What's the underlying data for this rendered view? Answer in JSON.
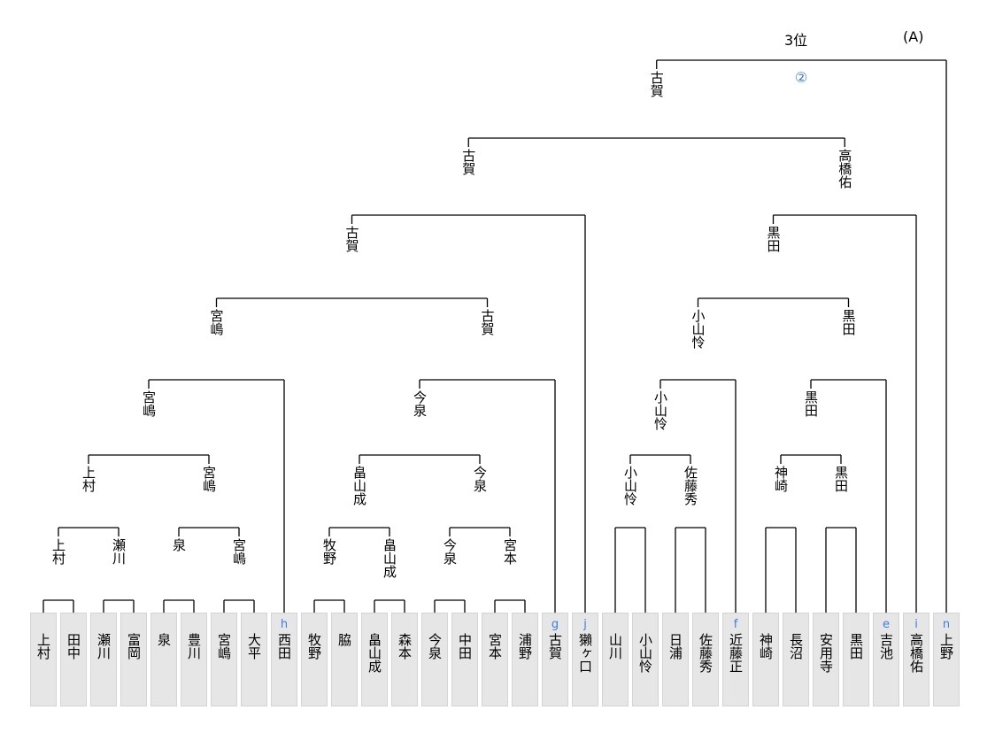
{
  "header": {
    "place": "3位",
    "group": "(A)"
  },
  "colors": {
    "line": "#000000",
    "code": "#3b7ddd",
    "box_bg": "#e6e6e6",
    "box_border": "#d4d4d4"
  },
  "players": [
    {
      "name": "上村",
      "code": ""
    },
    {
      "name": "田中",
      "code": ""
    },
    {
      "name": "瀬川",
      "code": ""
    },
    {
      "name": "富岡",
      "code": ""
    },
    {
      "name": "泉",
      "code": ""
    },
    {
      "name": "豊川",
      "code": ""
    },
    {
      "name": "宮嶋",
      "code": ""
    },
    {
      "name": "大平",
      "code": ""
    },
    {
      "name": "西田",
      "code": "h"
    },
    {
      "name": "牧野",
      "code": ""
    },
    {
      "name": "脇",
      "code": ""
    },
    {
      "name": "畠山成",
      "code": ""
    },
    {
      "name": "森本",
      "code": ""
    },
    {
      "name": "今泉",
      "code": ""
    },
    {
      "name": "中田",
      "code": ""
    },
    {
      "name": "宮本",
      "code": ""
    },
    {
      "name": "浦野",
      "code": ""
    },
    {
      "name": "古賀",
      "code": "g"
    },
    {
      "name": "獺ヶ口",
      "code": "j"
    },
    {
      "name": "山川",
      "code": ""
    },
    {
      "name": "小山怜",
      "code": ""
    },
    {
      "name": "日浦",
      "code": ""
    },
    {
      "name": "佐藤秀",
      "code": ""
    },
    {
      "name": "近藤正",
      "code": "f"
    },
    {
      "name": "神崎",
      "code": ""
    },
    {
      "name": "長沼",
      "code": ""
    },
    {
      "name": "安用寺",
      "code": ""
    },
    {
      "name": "黒田",
      "code": ""
    },
    {
      "name": "吉池",
      "code": "e"
    },
    {
      "name": "高橋佑",
      "code": "i"
    },
    {
      "name": "上野",
      "code": "n"
    }
  ],
  "bracket": {
    "badge": "②",
    "children": [
      {
        "winner": "古賀",
        "children": [
          {
            "winner": "古賀",
            "children": [
              {
                "winner": "古賀",
                "children": [
                  {
                    "winner": "宮嶋",
                    "children": [
                      {
                        "winner": "宮嶋",
                        "children": [
                          {
                            "winner": "上村",
                            "children": [
                              {
                                "winner": "上村",
                                "children": [
                                  {
                                    "leaf": 0
                                  },
                                  {
                                    "leaf": 1
                                  }
                                ]
                              },
                              {
                                "winner": "瀬川",
                                "children": [
                                  {
                                    "leaf": 2
                                  },
                                  {
                                    "leaf": 3
                                  }
                                ]
                              }
                            ]
                          },
                          {
                            "winner": "宮嶋",
                            "children": [
                              {
                                "winner": "泉",
                                "children": [
                                  {
                                    "leaf": 4
                                  },
                                  {
                                    "leaf": 5
                                  }
                                ]
                              },
                              {
                                "winner": "宮嶋",
                                "children": [
                                  {
                                    "leaf": 6
                                  },
                                  {
                                    "leaf": 7
                                  }
                                ]
                              }
                            ]
                          }
                        ]
                      },
                      {
                        "leaf": 8
                      }
                    ]
                  },
                  {
                    "winner": "古賀",
                    "children": [
                      {
                        "winner": "今泉",
                        "children": [
                          {
                            "winner": "畠山成",
                            "children": [
                              {
                                "winner": "牧野",
                                "children": [
                                  {
                                    "leaf": 9
                                  },
                                  {
                                    "leaf": 10
                                  }
                                ]
                              },
                              {
                                "winner": "畠山成",
                                "children": [
                                  {
                                    "leaf": 11
                                  },
                                  {
                                    "leaf": 12
                                  }
                                ]
                              }
                            ]
                          },
                          {
                            "winner": "今泉",
                            "children": [
                              {
                                "winner": "今泉",
                                "children": [
                                  {
                                    "leaf": 13
                                  },
                                  {
                                    "leaf": 14
                                  }
                                ]
                              },
                              {
                                "winner": "宮本",
                                "children": [
                                  {
                                    "leaf": 15
                                  },
                                  {
                                    "leaf": 16
                                  }
                                ]
                              }
                            ]
                          }
                        ]
                      },
                      {
                        "leaf": 17
                      }
                    ]
                  }
                ]
              },
              {
                "leaf": 18
              }
            ]
          },
          {
            "winner": "高橋佑",
            "children": [
              {
                "winner": "黒田",
                "children": [
                  {
                    "winner": "小山怜",
                    "children": [
                      {
                        "winner": "小山怜",
                        "children": [
                          {
                            "winner": "小山怜",
                            "children": [
                              {
                                "leaf": 19
                              },
                              {
                                "leaf": 20
                              }
                            ]
                          },
                          {
                            "winner": "佐藤秀",
                            "children": [
                              {
                                "leaf": 21
                              },
                              {
                                "leaf": 22
                              }
                            ]
                          }
                        ]
                      },
                      {
                        "leaf": 23
                      }
                    ]
                  },
                  {
                    "winner": "黒田",
                    "children": [
                      {
                        "winner": "黒田",
                        "children": [
                          {
                            "winner": "神崎",
                            "children": [
                              {
                                "leaf": 24
                              },
                              {
                                "leaf": 25
                              }
                            ]
                          },
                          {
                            "winner": "黒田",
                            "children": [
                              {
                                "leaf": 26
                              },
                              {
                                "leaf": 27
                              }
                            ]
                          }
                        ]
                      },
                      {
                        "leaf": 28
                      }
                    ]
                  }
                ]
              },
              {
                "leaf": 29
              }
            ]
          }
        ]
      },
      {
        "leaf": 30
      }
    ]
  }
}
